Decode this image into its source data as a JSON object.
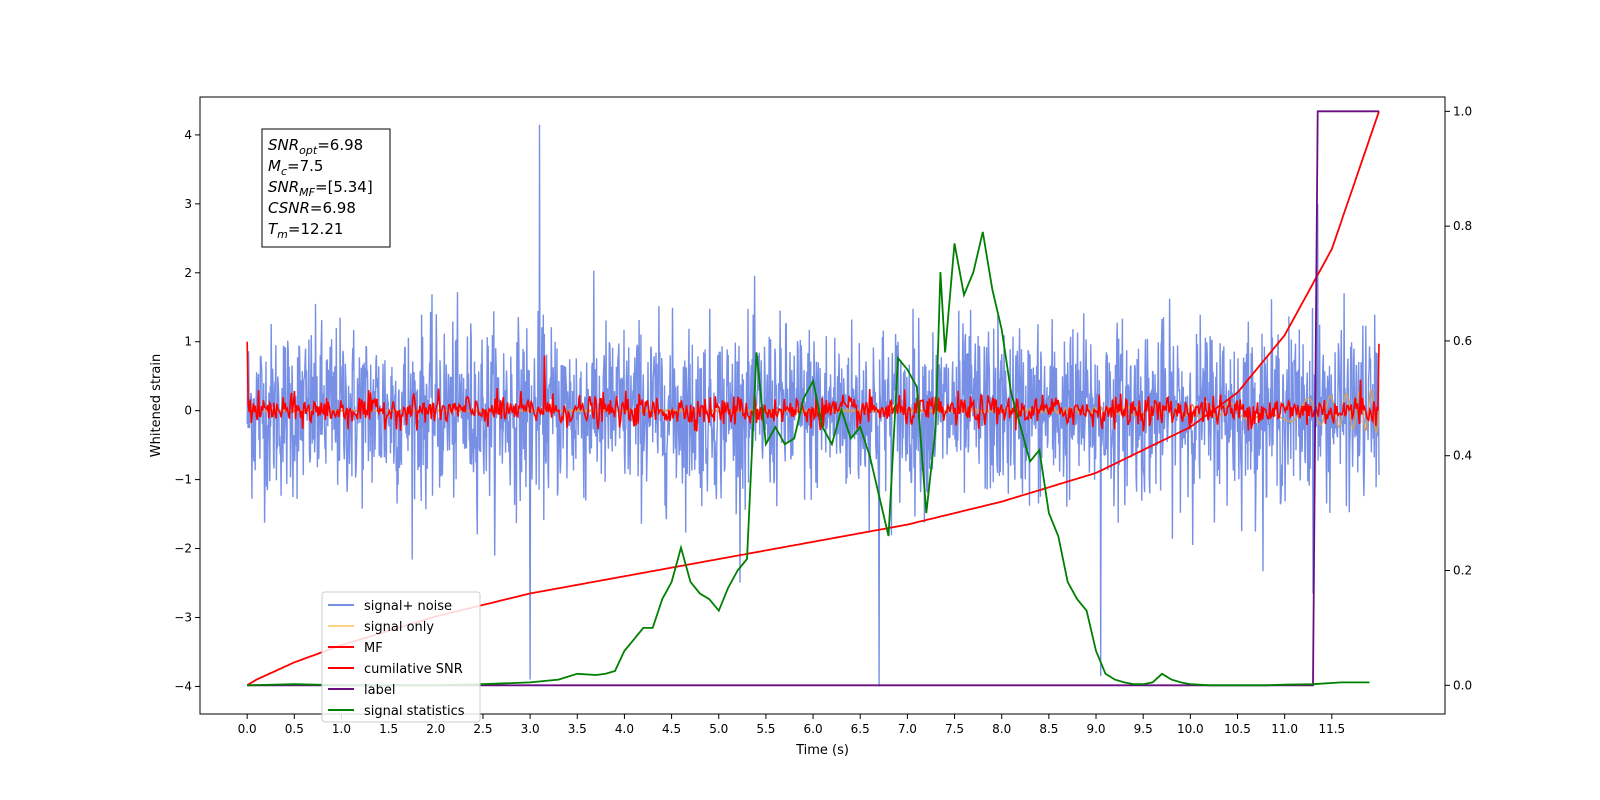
{
  "chart_data": {
    "type": "line",
    "xlabel": "Time (s)",
    "ylabel": "Whitened strain",
    "xlim": [
      -0.5,
      12.7
    ],
    "ylim_left": [
      -4.4,
      4.55
    ],
    "ylim_right": [
      -0.05,
      1.025
    ],
    "x_ticks": [
      "0.0",
      "0.5",
      "1.0",
      "1.5",
      "2.0",
      "2.5",
      "3.0",
      "3.5",
      "4.0",
      "4.5",
      "5.0",
      "5.5",
      "6.0",
      "6.5",
      "7.0",
      "7.5",
      "8.0",
      "8.5",
      "9.0",
      "9.5",
      "10.0",
      "10.5",
      "11.0",
      "11.5"
    ],
    "y_ticks_left": [
      "−4",
      "−3",
      "−2",
      "−1",
      "0",
      "1",
      "2",
      "3",
      "4"
    ],
    "y_ticks_right": [
      "0.0",
      "0.2",
      "0.4",
      "0.6",
      "0.8",
      "1.0"
    ],
    "grid": false,
    "legend": {
      "position": "lower-left",
      "entries": [
        {
          "label": "signal+ noise",
          "color": "#7790e6"
        },
        {
          "label": "signal only",
          "color": "#ffd27f"
        },
        {
          "label": "MF",
          "color": "#ff0000"
        },
        {
          "label": "cumilative SNR",
          "color": "#ff0000"
        },
        {
          "label": "label",
          "color": "#6a0d83"
        },
        {
          "label": "signal statistics",
          "color": "#008000"
        }
      ]
    },
    "annotation": {
      "lines": [
        {
          "base": "SNR",
          "sub": "opt",
          "value": "=6.98"
        },
        {
          "base": "M",
          "sub": "c",
          "value": "=7.5"
        },
        {
          "base": "SNR",
          "sub": "MF",
          "value": "=[5.34]"
        },
        {
          "base": "CSNR",
          "sub": "",
          "value": "=6.98"
        },
        {
          "base": "T",
          "sub": "m",
          "value": "=12.21"
        }
      ]
    },
    "series": [
      {
        "name": "signal+ noise",
        "axis": "left",
        "color": "#7790e6",
        "description_values": {
          "x_range": [
            0,
            12.0
          ],
          "amplitude_band": [
            -1.4,
            1.4
          ],
          "notable_spikes": [
            [
              3.1,
              4.15
            ],
            [
              3.0,
              -3.9
            ],
            [
              6.7,
              -4.0
            ],
            [
              9.05,
              -3.85
            ],
            [
              11.3,
              -2.65
            ],
            [
              11.35,
              3.0
            ]
          ]
        }
      },
      {
        "name": "signal only",
        "axis": "left",
        "color": "#ffd27f",
        "envelope": {
          "x": [
            0,
            8,
            9,
            10,
            11,
            11.5,
            12.0
          ],
          "amp": [
            0,
            0.02,
            0.05,
            0.09,
            0.15,
            0.22,
            0.32
          ]
        }
      },
      {
        "name": "MF",
        "axis": "left",
        "color": "#ff0000",
        "start_value": 1.0,
        "end_value": 0.97,
        "band": [
          -0.3,
          0.3
        ],
        "notable_peaks": [
          [
            3.15,
            0.8
          ],
          [
            11.8,
            0.45
          ]
        ]
      },
      {
        "name": "cumilative SNR",
        "axis": "right",
        "color": "#ff0000",
        "x": [
          0,
          0.1,
          0.5,
          1.0,
          2.0,
          3.0,
          4.0,
          5.0,
          6.0,
          7.0,
          8.0,
          9.0,
          10.0,
          10.5,
          11.0,
          11.5,
          12.0
        ],
        "values": [
          0.0,
          0.01,
          0.04,
          0.07,
          0.12,
          0.16,
          0.19,
          0.22,
          0.25,
          0.28,
          0.32,
          0.37,
          0.45,
          0.51,
          0.61,
          0.76,
          1.0
        ]
      },
      {
        "name": "label",
        "axis": "right",
        "color": "#6a0d83",
        "x": [
          0,
          11.3,
          11.35,
          12.0
        ],
        "values": [
          0.0,
          0.0,
          1.0,
          1.0
        ]
      },
      {
        "name": "signal statistics",
        "axis": "right",
        "color": "#008000",
        "x": [
          0,
          0.5,
          1.0,
          1.5,
          2.0,
          2.5,
          3.0,
          3.3,
          3.5,
          3.7,
          3.8,
          3.9,
          4.0,
          4.1,
          4.2,
          4.3,
          4.4,
          4.5,
          4.6,
          4.7,
          4.8,
          4.9,
          5.0,
          5.1,
          5.2,
          5.3,
          5.4,
          5.5,
          5.6,
          5.7,
          5.8,
          5.9,
          6.0,
          6.1,
          6.2,
          6.3,
          6.4,
          6.5,
          6.6,
          6.7,
          6.8,
          6.9,
          7.0,
          7.1,
          7.2,
          7.3,
          7.35,
          7.4,
          7.5,
          7.6,
          7.7,
          7.8,
          7.9,
          8.0,
          8.1,
          8.2,
          8.3,
          8.4,
          8.5,
          8.6,
          8.7,
          8.8,
          8.9,
          9.0,
          9.1,
          9.2,
          9.3,
          9.4,
          9.5,
          9.6,
          9.7,
          9.8,
          9.9,
          10.0,
          10.2,
          10.5,
          10.8,
          11.0,
          11.3,
          11.6,
          11.9
        ],
        "values": [
          0.0,
          0.002,
          0.0,
          0.0,
          0.0,
          0.002,
          0.005,
          0.01,
          0.02,
          0.018,
          0.02,
          0.025,
          0.06,
          0.08,
          0.1,
          0.1,
          0.15,
          0.18,
          0.24,
          0.18,
          0.16,
          0.15,
          0.13,
          0.17,
          0.2,
          0.22,
          0.58,
          0.42,
          0.45,
          0.42,
          0.43,
          0.5,
          0.53,
          0.45,
          0.42,
          0.48,
          0.43,
          0.45,
          0.4,
          0.33,
          0.26,
          0.57,
          0.55,
          0.52,
          0.3,
          0.45,
          0.72,
          0.58,
          0.77,
          0.68,
          0.72,
          0.79,
          0.69,
          0.62,
          0.51,
          0.45,
          0.39,
          0.41,
          0.3,
          0.26,
          0.18,
          0.15,
          0.13,
          0.06,
          0.02,
          0.01,
          0.005,
          0.002,
          0.002,
          0.005,
          0.02,
          0.01,
          0.005,
          0.002,
          0.0,
          0.0,
          0.0,
          0.001,
          0.002,
          0.005,
          0.005
        ]
      }
    ]
  }
}
